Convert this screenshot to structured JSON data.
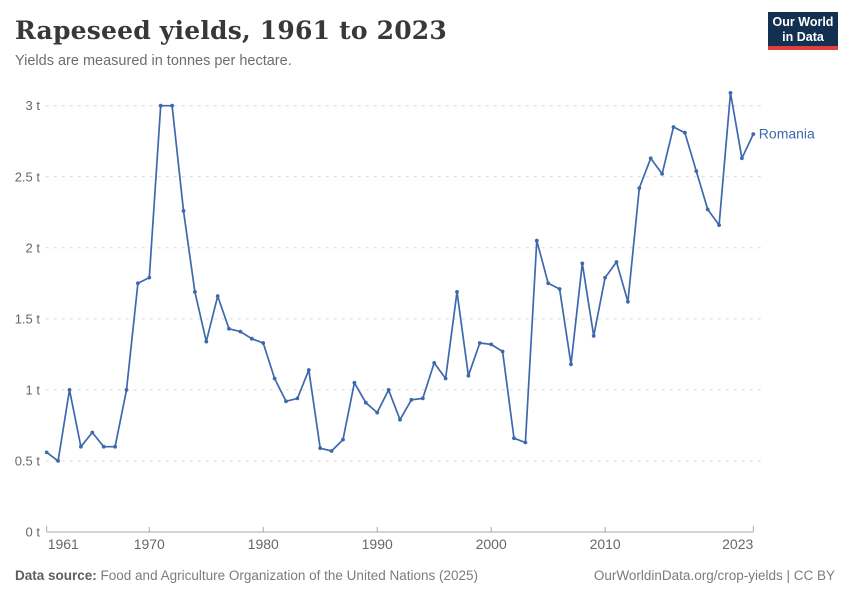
{
  "header": {
    "title": "Rapeseed yields, 1961 to 2023",
    "subtitle": "Yields are measured in tonnes per hectare."
  },
  "logo": {
    "line1": "Our World",
    "line2": "in Data"
  },
  "colors": {
    "line": "#3e68ae",
    "grid": "#d9d9d9",
    "axis": "#a8a8a8",
    "tick_text": "#67676b",
    "title_text": "#383838",
    "logo_bg": "#12304f",
    "logo_accent": "#e0403d"
  },
  "chart_data": {
    "type": "line",
    "title": "Rapeseed yields, 1961 to 2023",
    "xlabel": "",
    "ylabel": "tonnes per hectare",
    "xlim": [
      1961,
      2023
    ],
    "ylim": [
      0,
      3.2
    ],
    "grid": "horizontal-dashed",
    "legend_position": "end-of-line-label",
    "yticks": [
      {
        "v": 0,
        "label": "0 t"
      },
      {
        "v": 0.5,
        "label": "0.5 t"
      },
      {
        "v": 1,
        "label": "1 t"
      },
      {
        "v": 1.5,
        "label": "1.5 t"
      },
      {
        "v": 2,
        "label": "2 t"
      },
      {
        "v": 2.5,
        "label": "2.5 t"
      },
      {
        "v": 3,
        "label": "3 t"
      }
    ],
    "xticks": [
      {
        "v": 1961,
        "label": "1961"
      },
      {
        "v": 1970,
        "label": "1970"
      },
      {
        "v": 1980,
        "label": "1980"
      },
      {
        "v": 1990,
        "label": "1990"
      },
      {
        "v": 2000,
        "label": "2000"
      },
      {
        "v": 2010,
        "label": "2010"
      },
      {
        "v": 2023,
        "label": "2023"
      }
    ],
    "x": [
      1961,
      1962,
      1963,
      1964,
      1965,
      1966,
      1967,
      1968,
      1969,
      1970,
      1971,
      1972,
      1973,
      1974,
      1975,
      1976,
      1977,
      1978,
      1979,
      1980,
      1981,
      1982,
      1983,
      1984,
      1985,
      1986,
      1987,
      1988,
      1989,
      1990,
      1991,
      1992,
      1993,
      1994,
      1995,
      1996,
      1997,
      1998,
      1999,
      2000,
      2001,
      2002,
      2003,
      2004,
      2005,
      2006,
      2007,
      2008,
      2009,
      2010,
      2011,
      2012,
      2013,
      2014,
      2015,
      2016,
      2017,
      2018,
      2019,
      2020,
      2021,
      2022,
      2023
    ],
    "series": [
      {
        "name": "Romania",
        "color": "#3e68ae",
        "values": [
          0.56,
          0.5,
          1.0,
          0.6,
          0.7,
          0.6,
          0.6,
          1.0,
          1.75,
          1.79,
          3.0,
          3.0,
          2.26,
          1.69,
          1.34,
          1.66,
          1.43,
          1.41,
          1.36,
          1.33,
          1.08,
          0.92,
          0.94,
          1.14,
          0.59,
          0.57,
          0.65,
          1.05,
          0.91,
          0.84,
          1.0,
          0.79,
          0.93,
          0.94,
          1.19,
          1.08,
          1.69,
          1.1,
          1.33,
          1.32,
          1.27,
          0.66,
          0.63,
          2.05,
          1.75,
          1.71,
          1.18,
          1.89,
          1.38,
          1.79,
          1.9,
          1.62,
          2.42,
          2.63,
          2.52,
          2.85,
          2.81,
          2.54,
          2.27,
          2.16,
          3.09,
          2.63,
          2.8
        ]
      }
    ]
  },
  "footer": {
    "source_label": "Data source:",
    "source_text": " Food and Agriculture Organization of the United Nations (2025)",
    "credit": "OurWorldinData.org/crop-yields | CC BY"
  }
}
